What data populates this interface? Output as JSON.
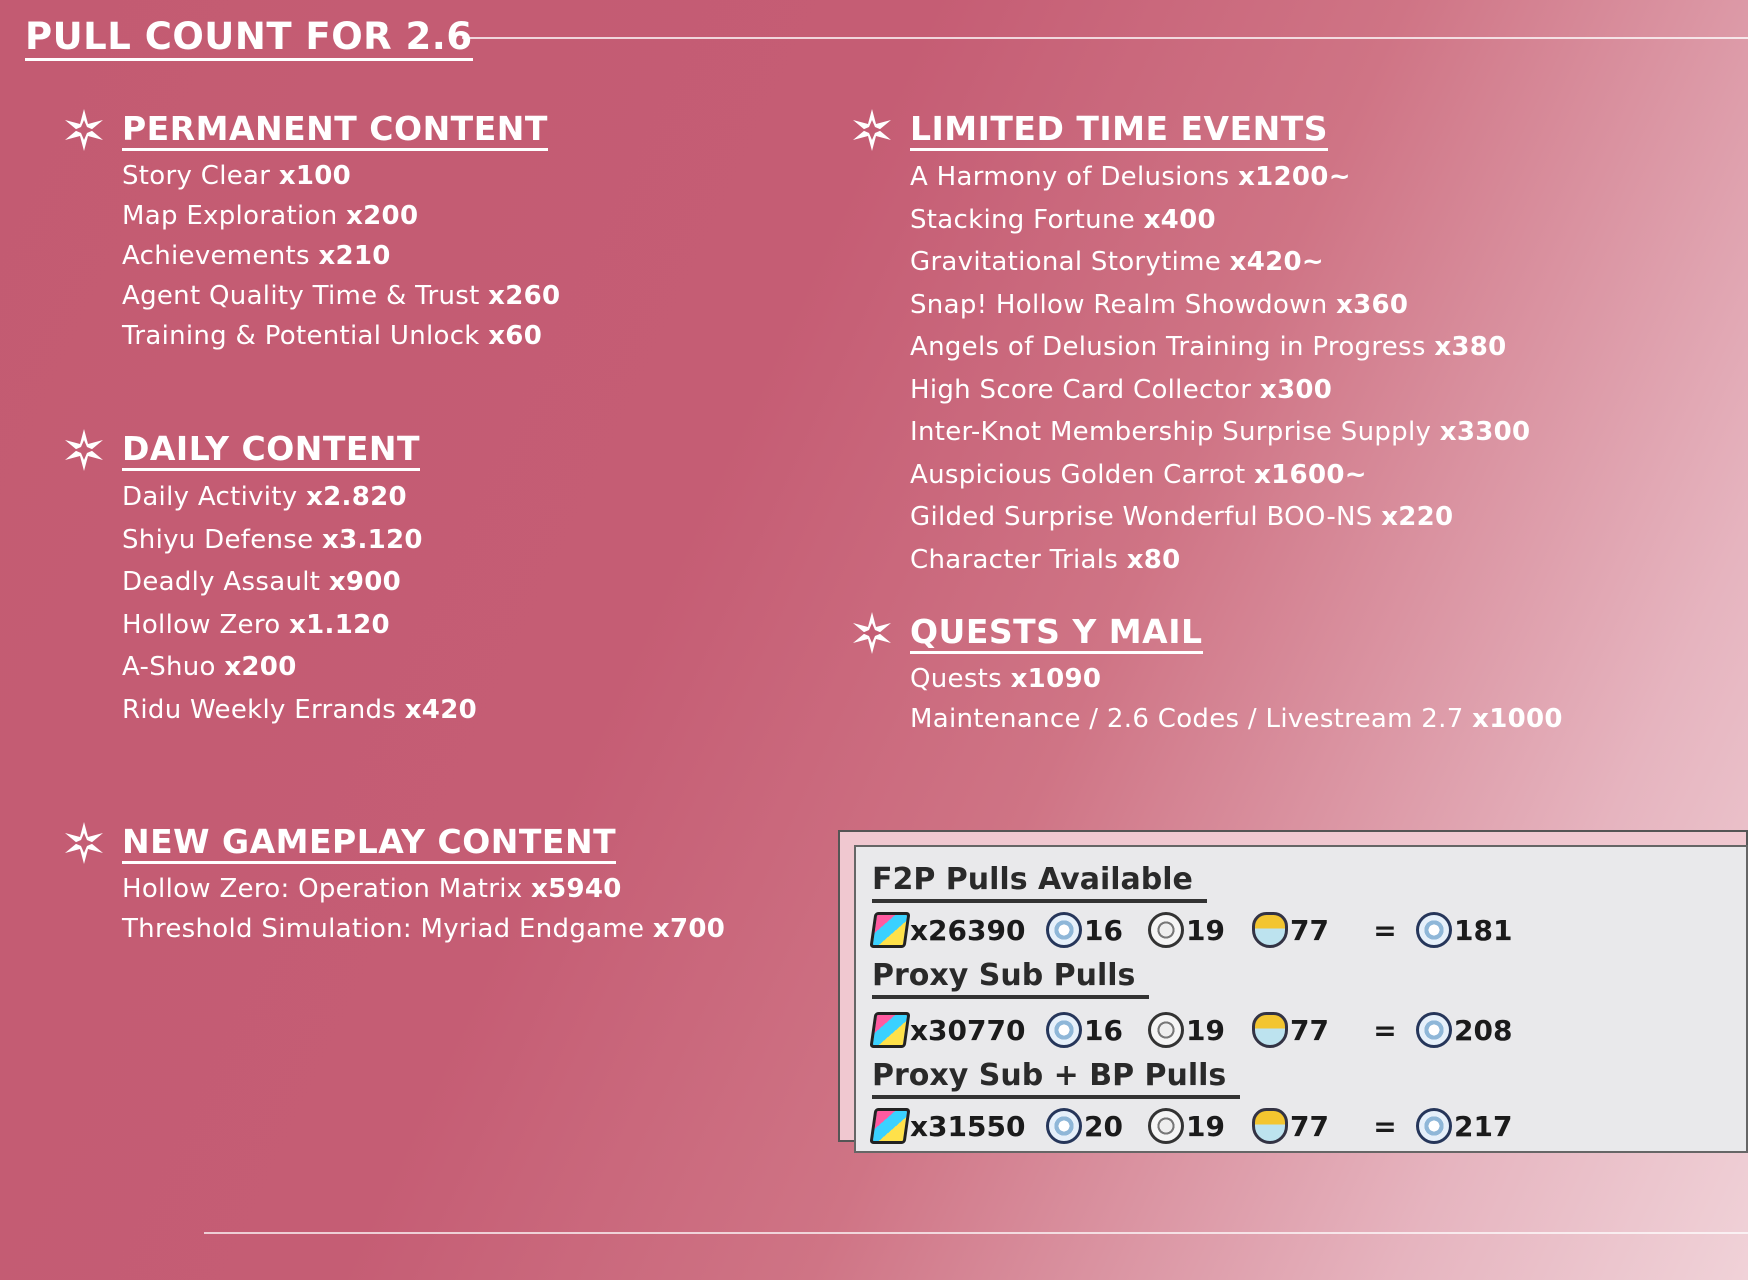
{
  "title": "PULL COUNT FOR 2.6",
  "permanent": {
    "title": "PERMANENT CONTENT",
    "items": [
      {
        "name": "Story Clear",
        "value": "x100"
      },
      {
        "name": "Map Exploration",
        "value": "x200"
      },
      {
        "name": "Achievements",
        "value": "x210"
      },
      {
        "name": "Agent Quality Time & Trust",
        "value": "x260"
      },
      {
        "name": "Training & Potential Unlock",
        "value": "x60"
      }
    ]
  },
  "daily": {
    "title": "DAILY CONTENT",
    "items": [
      {
        "name": "Daily Activity",
        "value": "x2.820"
      },
      {
        "name": "Shiyu Defense",
        "value": "x3.120"
      },
      {
        "name": "Deadly Assault",
        "value": "x900"
      },
      {
        "name": "Hollow Zero",
        "value": "x1.120"
      },
      {
        "name": "A-Shuo",
        "value": "x200"
      },
      {
        "name": "Ridu Weekly Errands",
        "value": "x420"
      }
    ]
  },
  "new_gameplay": {
    "title": "NEW GAMEPLAY CONTENT",
    "items": [
      {
        "name": "Hollow Zero: Operation Matrix",
        "value": "x5940"
      },
      {
        "name": "Threshold Simulation: Myriad Endgame",
        "value": "x700"
      }
    ]
  },
  "limited": {
    "title": "LIMITED TIME EVENTS",
    "items": [
      {
        "name": "A Harmony of Delusions",
        "value": "x1200~"
      },
      {
        "name": "Stacking Fortune",
        "value": "x400"
      },
      {
        "name": "Gravitational Storytime",
        "value": "x420~"
      },
      {
        "name": "Snap! Hollow Realm Showdown",
        "value": "x360"
      },
      {
        "name": "Angels of Delusion Training in Progress",
        "value": "x380"
      },
      {
        "name": "High Score Card Collector",
        "value": "x300"
      },
      {
        "name": "Inter-Knot Membership Surprise Supply",
        "value": "x3300"
      },
      {
        "name": "Auspicious Golden Carrot",
        "value": "x1600~"
      },
      {
        "name": "Gilded Surprise Wonderful BOO-NS",
        "value": "x220"
      },
      {
        "name": "Character Trials",
        "value": "x80"
      }
    ]
  },
  "quests": {
    "title": "QUESTS Y MAIL",
    "items": [
      {
        "name": "Quests",
        "value": "x1090"
      },
      {
        "name": "Maintenance / 2.6 Codes / Livestream 2.7",
        "value": "x1000"
      }
    ]
  },
  "summary": [
    {
      "title": "F2P Pulls Available",
      "polychrome": "x26390",
      "encrypted": "16",
      "master": "19",
      "boopon": "77",
      "eq": "=",
      "total": "181"
    },
    {
      "title": "Proxy Sub Pulls",
      "polychrome": "x30770",
      "encrypted": "16",
      "master": "19",
      "boopon": "77",
      "eq": "=",
      "total": "208"
    },
    {
      "title": "Proxy Sub + BP Pulls",
      "polychrome": "x31550",
      "encrypted": "20",
      "master": "19",
      "boopon": "77",
      "eq": "=",
      "total": "217"
    }
  ],
  "icons": {
    "section": "sparkle-star-icon",
    "currency": "polychrome-ticket-icon",
    "encrypted": "encrypted-master-tape-icon",
    "master": "master-tape-icon",
    "boopon": "boopon-icon"
  }
}
